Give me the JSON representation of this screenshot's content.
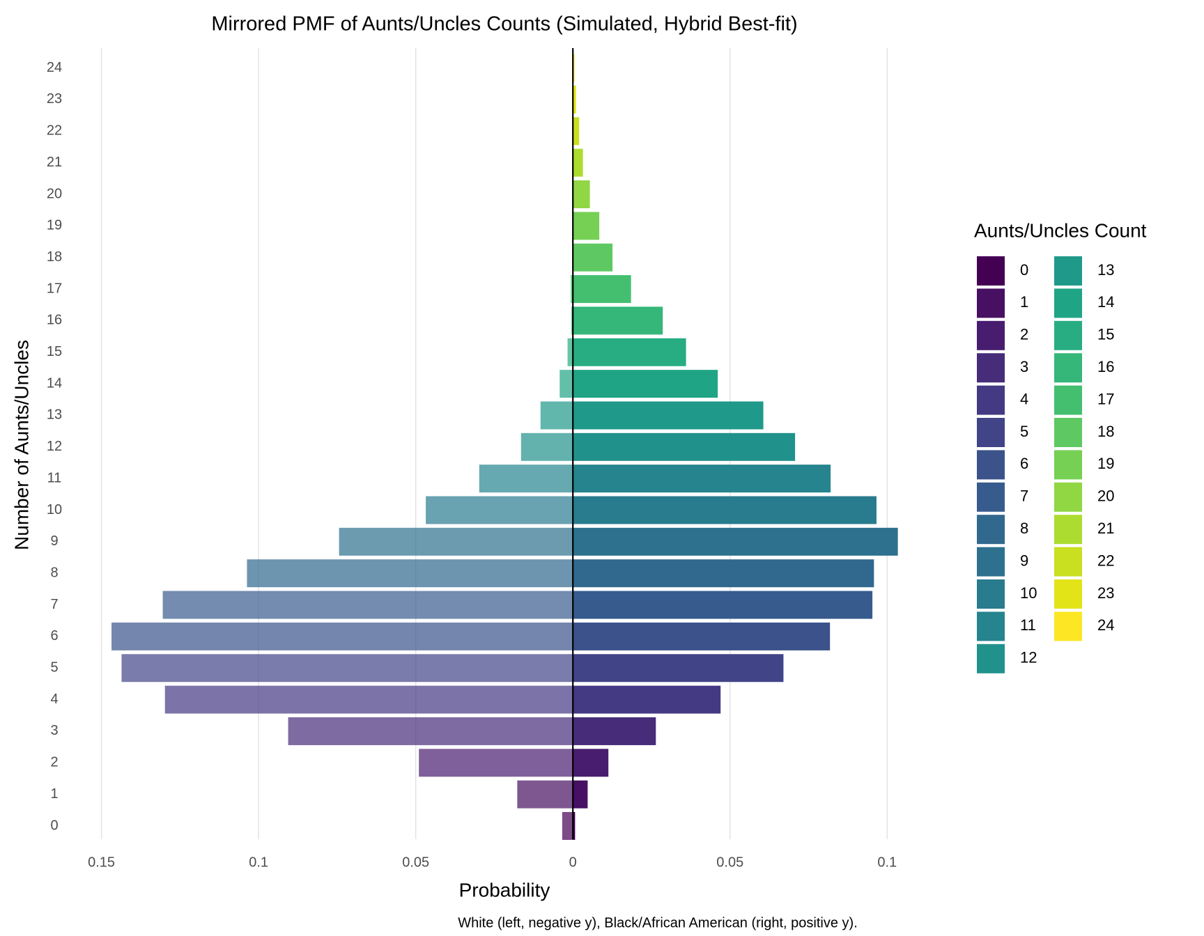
{
  "chart_data": {
    "type": "mirrored-bar",
    "title": "Mirrored PMF of Aunts/Uncles Counts (Simulated, Hybrid Best-fit)",
    "x_label": "Probability",
    "y_label": "Number of Aunts/Uncles",
    "caption": "White (left, negative y), Black/African American (right, positive y).",
    "legend_title": "Aunts/Uncles Count",
    "categories": [
      "0",
      "1",
      "2",
      "3",
      "4",
      "5",
      "6",
      "7",
      "8",
      "9",
      "10",
      "11",
      "12",
      "13",
      "14",
      "15",
      "16",
      "17",
      "18",
      "19",
      "20",
      "21",
      "22",
      "23",
      "24"
    ],
    "colors": [
      "#440154",
      "#471063",
      "#481d6f",
      "#472c7a",
      "#443983",
      "#414487",
      "#3b528b",
      "#375b8d",
      "#31688e",
      "#2d718e",
      "#297b8e",
      "#25848e",
      "#21918c",
      "#1f998a",
      "#20a486",
      "#27ad81",
      "#35b779",
      "#44bf70",
      "#5ec962",
      "#75d054",
      "#90d743",
      "#addc30",
      "#c8e020",
      "#e3e418",
      "#fde725"
    ],
    "series": [
      {
        "opacity": 0.7,
        "values": [
          -0.0034,
          -0.0177,
          -0.049,
          -0.0906,
          -0.1298,
          -0.1436,
          -0.1468,
          -0.1305,
          -0.1037,
          -0.0744,
          -0.0468,
          -0.0298,
          -0.0165,
          -0.0103,
          -0.0042,
          -0.0017,
          -0.0005,
          -0.0007,
          0,
          0,
          0,
          0,
          0,
          0,
          0
        ]
      },
      {
        "opacity": 1,
        "values": [
          0.0007,
          0.0047,
          0.0113,
          0.0264,
          0.047,
          0.067,
          0.0818,
          0.0953,
          0.0958,
          0.1034,
          0.0966,
          0.082,
          0.0707,
          0.0606,
          0.0461,
          0.036,
          0.0286,
          0.0185,
          0.0126,
          0.0084,
          0.0054,
          0.0032,
          0.002,
          0.001,
          0.0005
        ]
      }
    ],
    "xlim": [
      -0.1508,
      0.1108
    ],
    "xticks": [
      {
        "value": -0.15,
        "label": "0.15"
      },
      {
        "value": -0.1,
        "label": "0.1"
      },
      {
        "value": -0.05,
        "label": "0.05"
      },
      0,
      0.05,
      0.1
    ],
    "grid": true
  }
}
